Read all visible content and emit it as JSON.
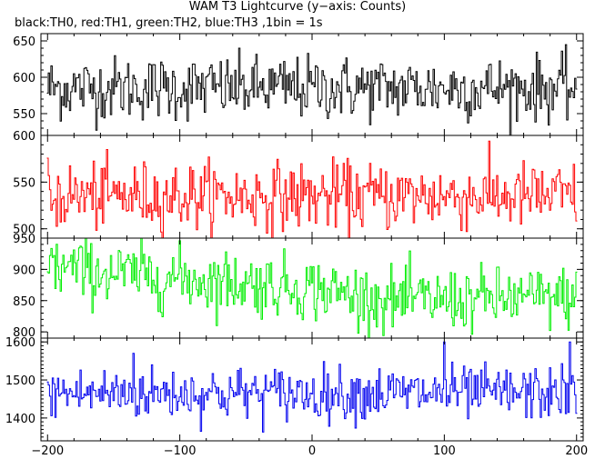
{
  "title": "WAM T3 Lightcurve (y−axis: Counts)",
  "subtitle": "black:TH0, red:TH1, green:TH2, blue:TH3 ,1bin = 1s",
  "chart_data": {
    "type": "line",
    "xlim": [
      -205,
      205
    ],
    "x_ticks": [
      -200,
      -100,
      0,
      100,
      200
    ],
    "x_tick_labels": [
      "−200",
      "−100",
      "0",
      "100",
      "200"
    ],
    "bin": 1,
    "series": [
      {
        "name": "TH0",
        "color": "#000000",
        "ylim": [
          520,
          660
        ],
        "ticks": [
          550,
          600,
          650
        ],
        "mean": 585,
        "sd": 22,
        "trend": [],
        "spikes": []
      },
      {
        "name": "TH1",
        "color": "#ff0000",
        "ylim": [
          490,
          600
        ],
        "ticks": [
          500,
          550,
          600
        ],
        "mean": 535,
        "sd": 18,
        "trend": [],
        "spikes": []
      },
      {
        "name": "TH2",
        "color": "#00ee00",
        "ylim": [
          790,
          950
        ],
        "ticks": [
          800,
          850,
          900,
          950
        ],
        "mean": 865,
        "sd": 25,
        "trend": [
          [
            -200,
            905
          ],
          [
            -160,
            895
          ],
          [
            0,
            870
          ],
          [
            60,
            850
          ],
          [
            200,
            855
          ]
        ],
        "spikes": []
      },
      {
        "name": "TH3",
        "color": "#0000ee",
        "ylim": [
          1340,
          1610
        ],
        "ticks": [
          1400,
          1500,
          1600
        ],
        "mean": 1465,
        "sd": 35,
        "trend": [],
        "spikes": [
          [
            100,
            1600
          ],
          [
            195,
            1600
          ],
          [
            -135,
            1570
          ]
        ]
      }
    ]
  }
}
